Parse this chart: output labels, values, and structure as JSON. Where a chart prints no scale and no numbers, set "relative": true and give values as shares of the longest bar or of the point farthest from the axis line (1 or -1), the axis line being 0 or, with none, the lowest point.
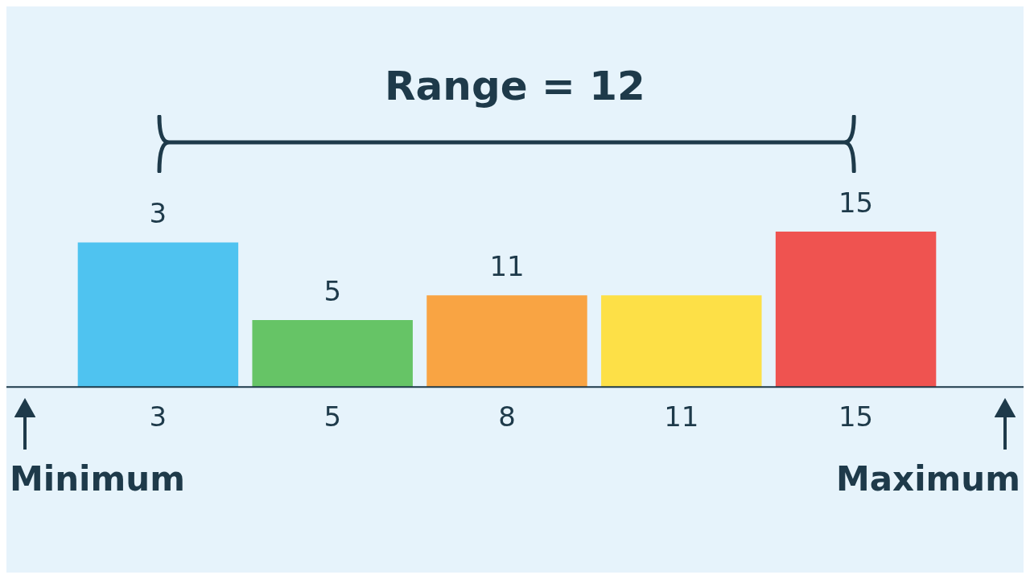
{
  "chart_data": {
    "type": "bar",
    "relative": true,
    "categories": [
      "3",
      "5",
      "8",
      "11",
      "15"
    ],
    "values": [
      0.93,
      0.43,
      0.59,
      0.59,
      1
    ],
    "colors": [
      "#4fc3f0",
      "#66c466",
      "#f9a443",
      "#fde047",
      "#ef5350"
    ],
    "annotations": [
      "Range = 12",
      "Minimum",
      "Maximum",
      "3",
      "5",
      "11",
      "15"
    ],
    "grid": false,
    "legend": false
  }
}
